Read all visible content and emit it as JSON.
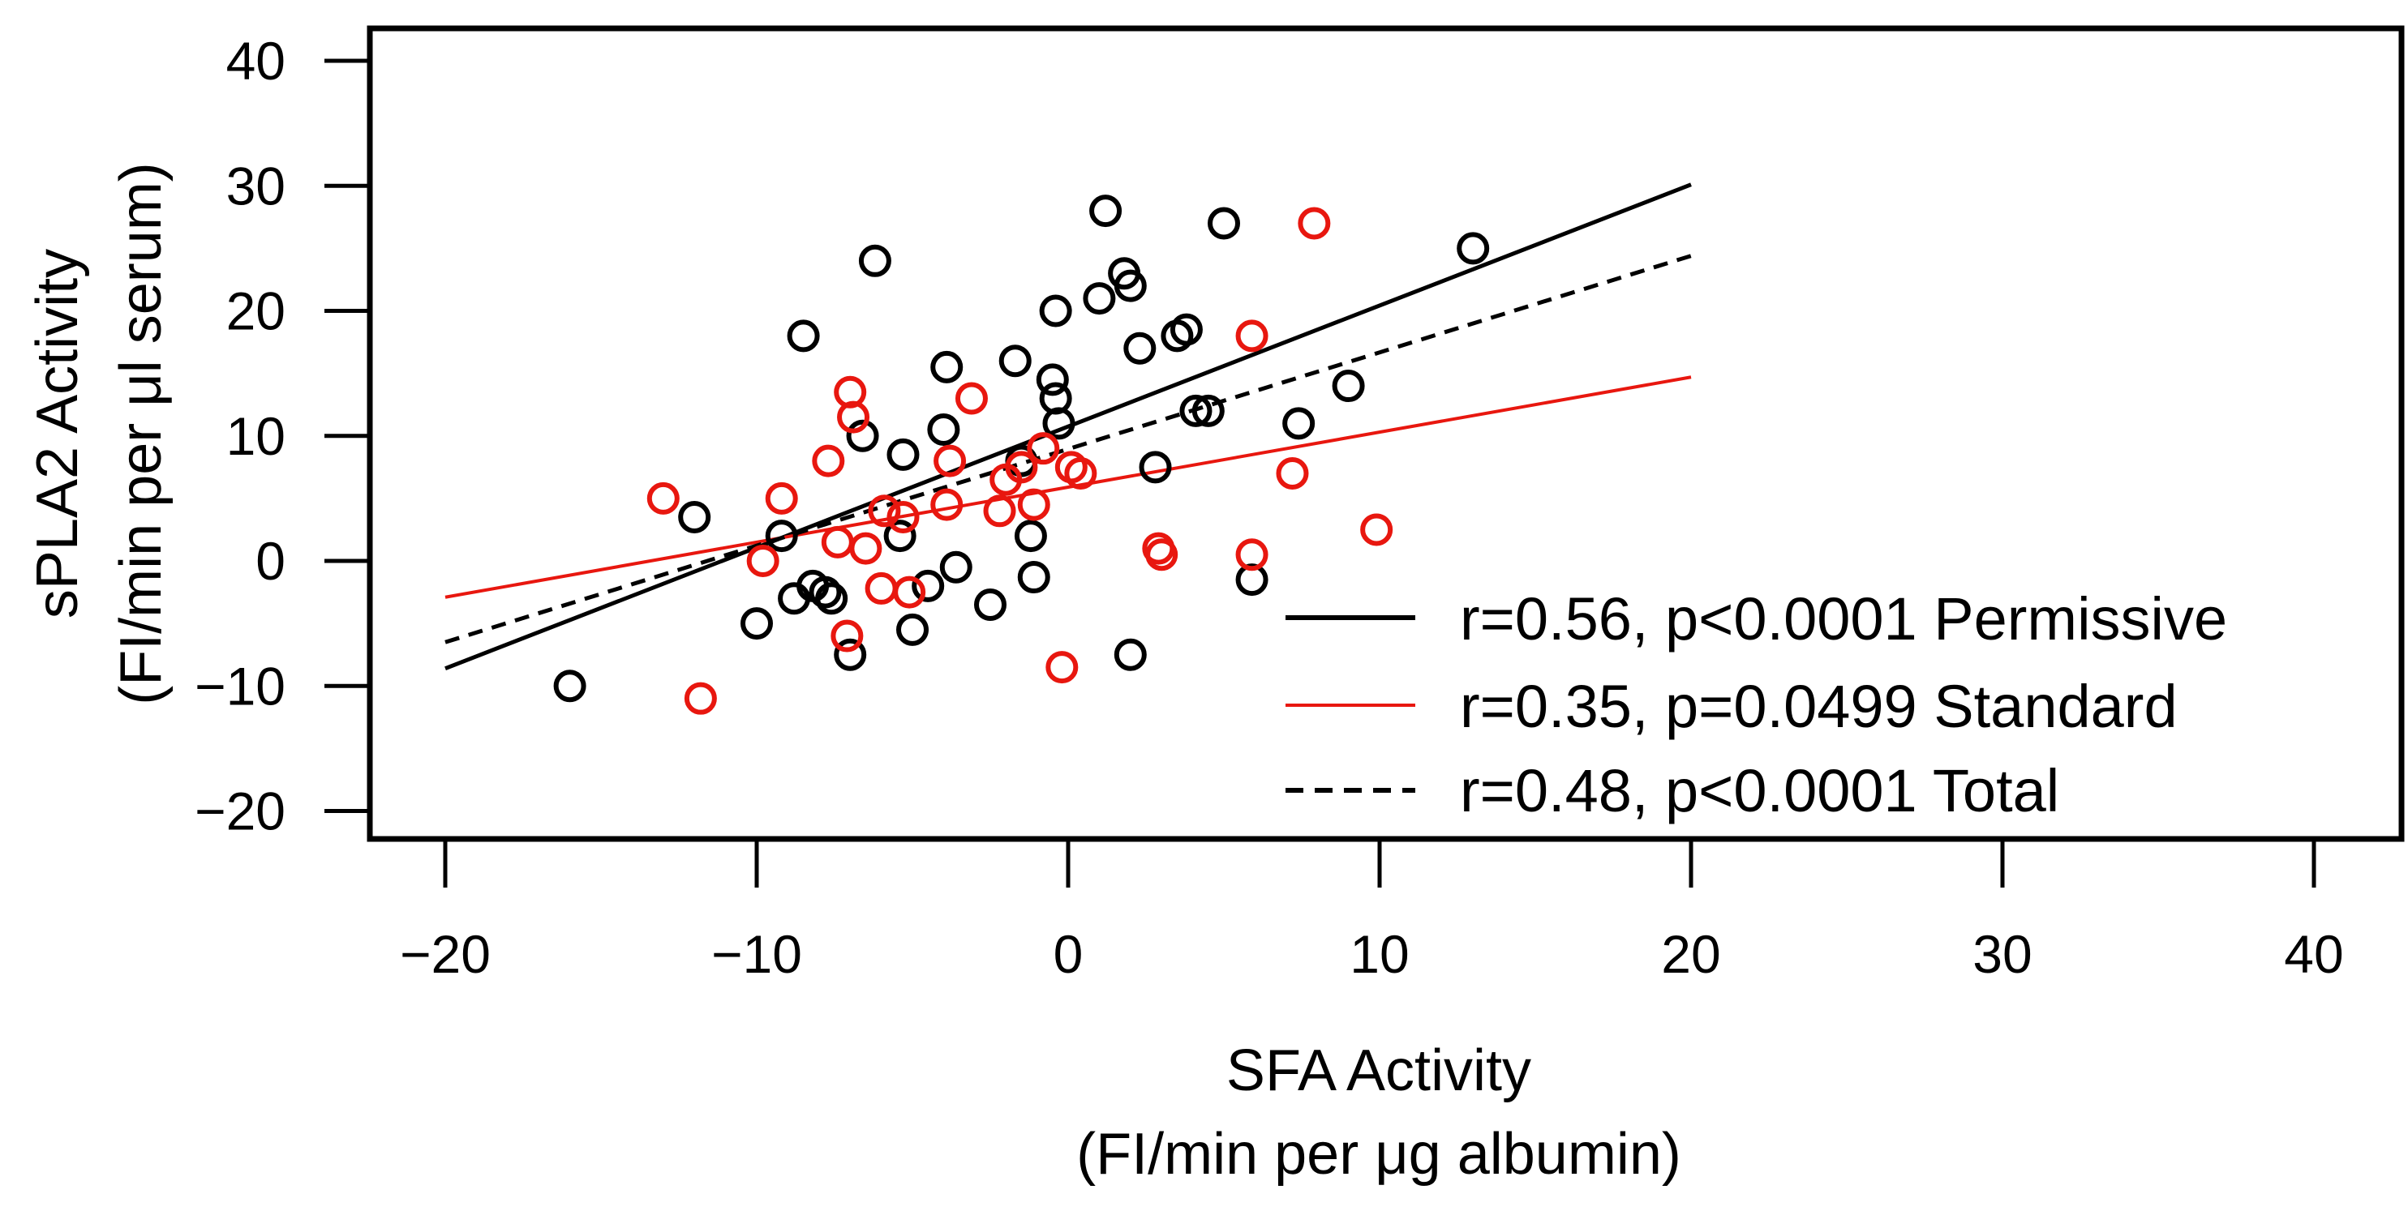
{
  "chart_data": {
    "type": "scatter",
    "xlabel_line1": "SFA Activity",
    "xlabel_line2": "(FI/min per μg albumin)",
    "ylabel_line1": "sPLA2 Activity",
    "ylabel_line2": "(FI/min per μl serum)",
    "xlim": [
      -22,
      42
    ],
    "ylim": [
      -22,
      42
    ],
    "x_ticks": [
      -20,
      -10,
      0,
      10,
      20,
      30,
      40
    ],
    "x_tick_labels": [
      "−20",
      "−10",
      "0",
      "10",
      "20",
      "30",
      "40"
    ],
    "y_ticks": [
      -20,
      -10,
      0,
      10,
      20,
      30,
      40
    ],
    "y_tick_labels": [
      "−20",
      "−10",
      "0",
      "10",
      "20",
      "30",
      "40"
    ],
    "colors": {
      "permissive": "#000000",
      "standard": "#e8170f",
      "total": "#000000"
    },
    "series": [
      {
        "name": "Permissive",
        "color": "#000000",
        "points": [
          [
            -16,
            -10
          ],
          [
            -12,
            3.5
          ],
          [
            -10,
            -5
          ],
          [
            -9.2,
            2
          ],
          [
            -8.5,
            18
          ],
          [
            -8.8,
            -3
          ],
          [
            -8.2,
            -2
          ],
          [
            -7.8,
            -2.5
          ],
          [
            -7.6,
            -3
          ],
          [
            -7,
            -7.5
          ],
          [
            -6.2,
            24
          ],
          [
            -6.6,
            10
          ],
          [
            -5.3,
            8.5
          ],
          [
            -5.4,
            2
          ],
          [
            -5,
            -5.5
          ],
          [
            -4.5,
            -2
          ],
          [
            -3.9,
            15.5
          ],
          [
            -4,
            10.5
          ],
          [
            -3.6,
            -0.5
          ],
          [
            -2.5,
            -3.5
          ],
          [
            -1.7,
            16
          ],
          [
            -1.5,
            8
          ],
          [
            -1.2,
            2
          ],
          [
            -1.1,
            -1.3
          ],
          [
            -0.4,
            20
          ],
          [
            -0.5,
            14.5
          ],
          [
            -0.4,
            13
          ],
          [
            -0.3,
            11
          ],
          [
            1,
            21
          ],
          [
            1.2,
            28
          ],
          [
            1.8,
            23
          ],
          [
            2,
            22
          ],
          [
            2.3,
            17
          ],
          [
            2.8,
            7.5
          ],
          [
            3.5,
            18
          ],
          [
            3.8,
            18.5
          ],
          [
            4.1,
            12
          ],
          [
            4.5,
            12
          ],
          [
            5,
            27
          ],
          [
            5.9,
            -1.5
          ],
          [
            7.4,
            11
          ],
          [
            9,
            14
          ],
          [
            13,
            25
          ],
          [
            2,
            -7.5
          ]
        ]
      },
      {
        "name": "Standard",
        "color": "#e8170f",
        "points": [
          [
            -13,
            5
          ],
          [
            -11.8,
            -11
          ],
          [
            -9.8,
            0
          ],
          [
            -9.2,
            5
          ],
          [
            -7.7,
            8
          ],
          [
            -7.4,
            1.5
          ],
          [
            -7.1,
            -6
          ],
          [
            -7,
            13.5
          ],
          [
            -6.9,
            11.5
          ],
          [
            -6.5,
            1
          ],
          [
            -6,
            -2.2
          ],
          [
            -5.9,
            4
          ],
          [
            -5.3,
            3.5
          ],
          [
            -5.1,
            -2.5
          ],
          [
            -3.9,
            4.5
          ],
          [
            -3.8,
            8
          ],
          [
            -3.1,
            13
          ],
          [
            -2.2,
            4
          ],
          [
            -2,
            6.5
          ],
          [
            -1.5,
            7.5
          ],
          [
            -1.1,
            4.5
          ],
          [
            -0.8,
            9
          ],
          [
            0.1,
            7.5
          ],
          [
            0.4,
            7
          ],
          [
            -0.2,
            -8.5
          ],
          [
            2.9,
            1
          ],
          [
            3,
            0.5
          ],
          [
            5.9,
            0.5
          ],
          [
            5.9,
            18
          ],
          [
            7.2,
            7
          ],
          [
            7.9,
            27
          ],
          [
            9.9,
            2.5
          ]
        ]
      }
    ],
    "fit_lines": [
      {
        "name": "Permissive",
        "style": "solid",
        "color": "#000000",
        "from": [
          -20,
          -8.6
        ],
        "to": [
          20,
          30.1
        ]
      },
      {
        "name": "Standard",
        "style": "solid",
        "color": "#e8170f",
        "from": [
          -20,
          -2.9
        ],
        "to": [
          20,
          14.7
        ]
      },
      {
        "name": "Total",
        "style": "dashed",
        "color": "#000000",
        "from": [
          -20,
          -6.5
        ],
        "to": [
          20,
          24.4
        ]
      }
    ],
    "legend": {
      "position": "bottom-right",
      "entries": [
        {
          "label": "r=0.56, p<0.0001 Permissive",
          "color": "#000000",
          "style": "solid"
        },
        {
          "label": "r=0.35, p=0.0499 Standard",
          "color": "#e8170f",
          "style": "solid"
        },
        {
          "label": "r=0.48, p<0.0001 Total",
          "color": "#000000",
          "style": "dashed"
        }
      ]
    }
  }
}
